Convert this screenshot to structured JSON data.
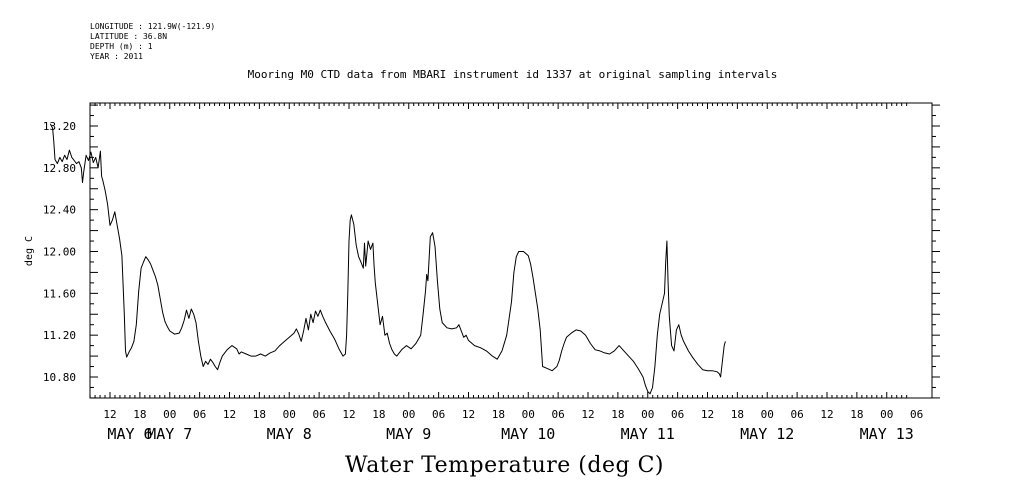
{
  "header": {
    "longitude": "LONGITUDE : 121.9W(-121.9)",
    "latitude": "LATITUDE : 36.8N",
    "depth": "DEPTH (m) : 1",
    "year": "YEAR : 2011",
    "title": "Mooring M0 CTD data from MBARI instrument id 1337 at original sampling intervals"
  },
  "footer": {
    "label": "Water Temperature (deg C)"
  },
  "chart_data": {
    "type": "line",
    "title": "Mooring M0 CTD data from MBARI instrument id 1337 at original sampling intervals",
    "xlabel": "",
    "ylabel": "deg C",
    "ylim": [
      10.6,
      13.4
    ],
    "xlim": [
      6.0,
      13.125
    ],
    "x_unit": "day of May 2011 (fractional)",
    "yticks": [
      "13.20",
      "12.80",
      "12.40",
      "12.00",
      "11.60",
      "11.20",
      "10.80"
    ],
    "ytick_values": [
      13.2,
      12.8,
      12.4,
      12.0,
      11.6,
      11.2,
      10.8
    ],
    "hour_ticks": [
      {
        "x": 6.5,
        "label": "12"
      },
      {
        "x": 6.75,
        "label": "18"
      },
      {
        "x": 7.0,
        "label": "00"
      },
      {
        "x": 7.25,
        "label": "06"
      },
      {
        "x": 7.5,
        "label": "12"
      },
      {
        "x": 7.75,
        "label": "18"
      },
      {
        "x": 8.0,
        "label": "00"
      },
      {
        "x": 8.25,
        "label": "06"
      },
      {
        "x": 8.5,
        "label": "12"
      },
      {
        "x": 8.75,
        "label": "18"
      },
      {
        "x": 9.0,
        "label": "00"
      },
      {
        "x": 9.25,
        "label": "06"
      },
      {
        "x": 9.5,
        "label": "12"
      },
      {
        "x": 9.75,
        "label": "18"
      },
      {
        "x": 10.0,
        "label": "00"
      },
      {
        "x": 10.25,
        "label": "06"
      },
      {
        "x": 10.5,
        "label": "12"
      },
      {
        "x": 10.75,
        "label": "18"
      },
      {
        "x": 11.0,
        "label": "00"
      },
      {
        "x": 11.25,
        "label": "06"
      },
      {
        "x": 11.5,
        "label": "12"
      },
      {
        "x": 11.75,
        "label": "18"
      },
      {
        "x": 12.0,
        "label": "00"
      },
      {
        "x": 12.25,
        "label": "06"
      },
      {
        "x": 12.5,
        "label": "12"
      },
      {
        "x": 12.75,
        "label": "18"
      },
      {
        "x": 13.0,
        "label": "00"
      },
      {
        "x": 13.25,
        "label": "06"
      }
    ],
    "day_labels": [
      {
        "x": 6.0,
        "label": "MAY  6"
      },
      {
        "x": 7.0,
        "label": "MAY  7"
      },
      {
        "x": 8.0,
        "label": "MAY  8"
      },
      {
        "x": 9.0,
        "label": "MAY  9"
      },
      {
        "x": 10.0,
        "label": "MAY 10"
      },
      {
        "x": 11.0,
        "label": "MAY 11"
      },
      {
        "x": 12.0,
        "label": "MAY 12"
      },
      {
        "x": 13.0,
        "label": "MAY 13"
      }
    ],
    "series": [
      {
        "color": "#000000",
        "points": [
          [
            6.0,
            13.22
          ],
          [
            6.02,
            13.18
          ],
          [
            6.03,
            13.05
          ],
          [
            6.04,
            12.88
          ],
          [
            6.06,
            12.84
          ],
          [
            6.08,
            12.9
          ],
          [
            6.1,
            12.86
          ],
          [
            6.12,
            12.92
          ],
          [
            6.14,
            12.88
          ],
          [
            6.16,
            12.97
          ],
          [
            6.18,
            12.9
          ],
          [
            6.2,
            12.87
          ],
          [
            6.22,
            12.84
          ],
          [
            6.24,
            12.86
          ],
          [
            6.26,
            12.8
          ],
          [
            6.27,
            12.66
          ],
          [
            6.28,
            12.76
          ],
          [
            6.3,
            12.92
          ],
          [
            6.32,
            12.87
          ],
          [
            6.34,
            12.95
          ],
          [
            6.36,
            12.85
          ],
          [
            6.38,
            12.9
          ],
          [
            6.4,
            12.8
          ],
          [
            6.42,
            12.96
          ],
          [
            6.43,
            12.72
          ],
          [
            6.44,
            12.68
          ],
          [
            6.46,
            12.58
          ],
          [
            6.48,
            12.45
          ],
          [
            6.5,
            12.25
          ],
          [
            6.52,
            12.3
          ],
          [
            6.54,
            12.38
          ],
          [
            6.56,
            12.25
          ],
          [
            6.58,
            12.12
          ],
          [
            6.6,
            11.96
          ],
          [
            6.62,
            11.4
          ],
          [
            6.63,
            11.05
          ],
          [
            6.64,
            10.99
          ],
          [
            6.66,
            11.04
          ],
          [
            6.68,
            11.08
          ],
          [
            6.7,
            11.14
          ],
          [
            6.72,
            11.3
          ],
          [
            6.74,
            11.62
          ],
          [
            6.76,
            11.84
          ],
          [
            6.78,
            11.9
          ],
          [
            6.8,
            11.95
          ],
          [
            6.82,
            11.92
          ],
          [
            6.84,
            11.88
          ],
          [
            6.86,
            11.82
          ],
          [
            6.88,
            11.76
          ],
          [
            6.9,
            11.68
          ],
          [
            6.92,
            11.55
          ],
          [
            6.94,
            11.42
          ],
          [
            6.96,
            11.33
          ],
          [
            6.98,
            11.28
          ],
          [
            7.0,
            11.24
          ],
          [
            7.04,
            11.21
          ],
          [
            7.08,
            11.22
          ],
          [
            7.1,
            11.27
          ],
          [
            7.12,
            11.34
          ],
          [
            7.14,
            11.44
          ],
          [
            7.16,
            11.36
          ],
          [
            7.18,
            11.45
          ],
          [
            7.2,
            11.4
          ],
          [
            7.22,
            11.32
          ],
          [
            7.24,
            11.14
          ],
          [
            7.26,
            11.0
          ],
          [
            7.28,
            10.9
          ],
          [
            7.3,
            10.95
          ],
          [
            7.32,
            10.92
          ],
          [
            7.34,
            10.97
          ],
          [
            7.36,
            10.94
          ],
          [
            7.38,
            10.9
          ],
          [
            7.4,
            10.87
          ],
          [
            7.42,
            10.94
          ],
          [
            7.44,
            11.0
          ],
          [
            7.48,
            11.06
          ],
          [
            7.52,
            11.1
          ],
          [
            7.56,
            11.07
          ],
          [
            7.58,
            11.02
          ],
          [
            7.6,
            11.04
          ],
          [
            7.64,
            11.02
          ],
          [
            7.68,
            11.0
          ],
          [
            7.72,
            11.0
          ],
          [
            7.76,
            11.02
          ],
          [
            7.8,
            11.0
          ],
          [
            7.84,
            11.03
          ],
          [
            7.88,
            11.05
          ],
          [
            7.92,
            11.1
          ],
          [
            7.96,
            11.14
          ],
          [
            8.0,
            11.18
          ],
          [
            8.04,
            11.22
          ],
          [
            8.06,
            11.26
          ],
          [
            8.08,
            11.21
          ],
          [
            8.1,
            11.14
          ],
          [
            8.12,
            11.24
          ],
          [
            8.14,
            11.36
          ],
          [
            8.16,
            11.25
          ],
          [
            8.18,
            11.4
          ],
          [
            8.2,
            11.32
          ],
          [
            8.22,
            11.43
          ],
          [
            8.24,
            11.38
          ],
          [
            8.26,
            11.44
          ],
          [
            8.28,
            11.38
          ],
          [
            8.3,
            11.33
          ],
          [
            8.34,
            11.24
          ],
          [
            8.38,
            11.16
          ],
          [
            8.42,
            11.06
          ],
          [
            8.45,
            11.0
          ],
          [
            8.47,
            11.02
          ],
          [
            8.48,
            11.2
          ],
          [
            8.49,
            11.6
          ],
          [
            8.5,
            12.1
          ],
          [
            8.51,
            12.3
          ],
          [
            8.52,
            12.35
          ],
          [
            8.54,
            12.26
          ],
          [
            8.56,
            12.06
          ],
          [
            8.58,
            11.95
          ],
          [
            8.6,
            11.9
          ],
          [
            8.62,
            11.84
          ],
          [
            8.63,
            12.08
          ],
          [
            8.64,
            11.86
          ],
          [
            8.66,
            12.1
          ],
          [
            8.68,
            12.02
          ],
          [
            8.7,
            12.08
          ],
          [
            8.71,
            11.86
          ],
          [
            8.72,
            11.7
          ],
          [
            8.74,
            11.5
          ],
          [
            8.76,
            11.3
          ],
          [
            8.78,
            11.38
          ],
          [
            8.8,
            11.2
          ],
          [
            8.82,
            11.22
          ],
          [
            8.84,
            11.12
          ],
          [
            8.86,
            11.06
          ],
          [
            8.88,
            11.02
          ],
          [
            8.9,
            11.0
          ],
          [
            8.94,
            11.06
          ],
          [
            8.98,
            11.1
          ],
          [
            9.02,
            11.07
          ],
          [
            9.06,
            11.12
          ],
          [
            9.1,
            11.2
          ],
          [
            9.12,
            11.4
          ],
          [
            9.14,
            11.62
          ],
          [
            9.15,
            11.78
          ],
          [
            9.16,
            11.72
          ],
          [
            9.18,
            12.14
          ],
          [
            9.2,
            12.18
          ],
          [
            9.22,
            12.05
          ],
          [
            9.24,
            11.72
          ],
          [
            9.26,
            11.45
          ],
          [
            9.28,
            11.32
          ],
          [
            9.32,
            11.27
          ],
          [
            9.36,
            11.26
          ],
          [
            9.4,
            11.27
          ],
          [
            9.42,
            11.3
          ],
          [
            9.44,
            11.24
          ],
          [
            9.46,
            11.18
          ],
          [
            9.48,
            11.2
          ],
          [
            9.5,
            11.15
          ],
          [
            9.55,
            11.1
          ],
          [
            9.6,
            11.08
          ],
          [
            9.65,
            11.05
          ],
          [
            9.7,
            11.0
          ],
          [
            9.74,
            10.97
          ],
          [
            9.78,
            11.05
          ],
          [
            9.82,
            11.2
          ],
          [
            9.86,
            11.52
          ],
          [
            9.88,
            11.8
          ],
          [
            9.9,
            11.95
          ],
          [
            9.92,
            12.0
          ],
          [
            9.96,
            12.0
          ],
          [
            10.0,
            11.96
          ],
          [
            10.02,
            11.88
          ],
          [
            10.04,
            11.75
          ],
          [
            10.06,
            11.6
          ],
          [
            10.08,
            11.45
          ],
          [
            10.1,
            11.25
          ],
          [
            10.12,
            10.9
          ],
          [
            10.16,
            10.88
          ],
          [
            10.2,
            10.86
          ],
          [
            10.24,
            10.9
          ],
          [
            10.26,
            10.96
          ],
          [
            10.28,
            11.05
          ],
          [
            10.3,
            11.12
          ],
          [
            10.32,
            11.18
          ],
          [
            10.36,
            11.22
          ],
          [
            10.4,
            11.25
          ],
          [
            10.44,
            11.24
          ],
          [
            10.48,
            11.2
          ],
          [
            10.52,
            11.12
          ],
          [
            10.56,
            11.06
          ],
          [
            10.6,
            11.05
          ],
          [
            10.64,
            11.03
          ],
          [
            10.68,
            11.02
          ],
          [
            10.72,
            11.05
          ],
          [
            10.76,
            11.1
          ],
          [
            10.8,
            11.05
          ],
          [
            10.84,
            11.0
          ],
          [
            10.88,
            10.95
          ],
          [
            10.92,
            10.88
          ],
          [
            10.96,
            10.8
          ],
          [
            10.98,
            10.72
          ],
          [
            11.0,
            10.66
          ],
          [
            11.02,
            10.64
          ],
          [
            11.04,
            10.7
          ],
          [
            11.06,
            10.9
          ],
          [
            11.08,
            11.2
          ],
          [
            11.1,
            11.4
          ],
          [
            11.12,
            11.5
          ],
          [
            11.14,
            11.6
          ],
          [
            11.15,
            11.9
          ],
          [
            11.16,
            12.1
          ],
          [
            11.17,
            11.7
          ],
          [
            11.18,
            11.38
          ],
          [
            11.2,
            11.1
          ],
          [
            11.22,
            11.05
          ],
          [
            11.24,
            11.25
          ],
          [
            11.26,
            11.3
          ],
          [
            11.28,
            11.2
          ],
          [
            11.3,
            11.14
          ],
          [
            11.34,
            11.05
          ],
          [
            11.38,
            10.98
          ],
          [
            11.42,
            10.92
          ],
          [
            11.46,
            10.87
          ],
          [
            11.5,
            10.86
          ],
          [
            11.54,
            10.86
          ],
          [
            11.58,
            10.85
          ],
          [
            11.6,
            10.83
          ],
          [
            11.61,
            10.8
          ],
          [
            11.62,
            10.9
          ],
          [
            11.64,
            11.1
          ],
          [
            11.65,
            11.14
          ]
        ]
      }
    ]
  }
}
